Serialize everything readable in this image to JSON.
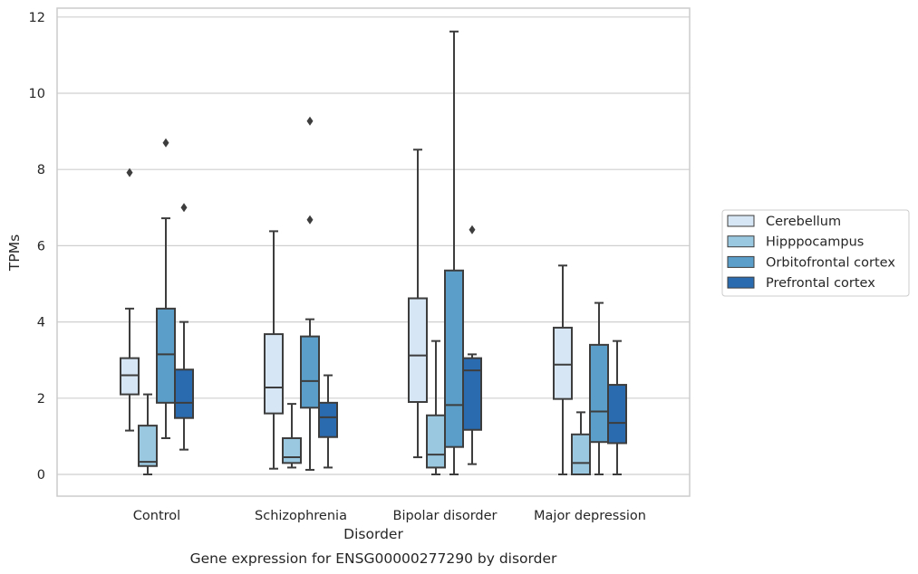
{
  "chart_data": {
    "type": "box",
    "xlabel": "Disorder",
    "ylabel": "TPMs",
    "caption": "Gene expression for ENSG00000277290 by disorder",
    "categories": [
      "Control",
      "Schizophrenia",
      "Bipolar disorder",
      "Major depression"
    ],
    "ylim": [
      -0.55,
      12.2
    ],
    "yticks": [
      0,
      2,
      4,
      6,
      8,
      10,
      12
    ],
    "grid": "horizontal",
    "legend_position": "right",
    "series": [
      {
        "name": "Cerebellum",
        "color": "#d6e6f4",
        "boxes": [
          {
            "whisker_low": 1.15,
            "q1": 2.1,
            "median": 2.6,
            "q3": 3.05,
            "whisker_high": 4.35,
            "outliers": [
              7.92
            ]
          },
          {
            "whisker_low": 0.15,
            "q1": 1.6,
            "median": 2.28,
            "q3": 3.68,
            "whisker_high": 6.38,
            "outliers": []
          },
          {
            "whisker_low": 0.45,
            "q1": 1.9,
            "median": 3.12,
            "q3": 4.62,
            "whisker_high": 8.52,
            "outliers": []
          },
          {
            "whisker_low": 0.0,
            "q1": 1.98,
            "median": 2.88,
            "q3": 3.85,
            "whisker_high": 5.48,
            "outliers": []
          }
        ]
      },
      {
        "name": "Hipppocampus",
        "color": "#9ac8e0",
        "boxes": [
          {
            "whisker_low": 0.0,
            "q1": 0.22,
            "median": 0.33,
            "q3": 1.28,
            "whisker_high": 2.1,
            "outliers": []
          },
          {
            "whisker_low": 0.18,
            "q1": 0.3,
            "median": 0.45,
            "q3": 0.95,
            "whisker_high": 1.85,
            "outliers": []
          },
          {
            "whisker_low": 0.0,
            "q1": 0.18,
            "median": 0.52,
            "q3": 1.55,
            "whisker_high": 3.5,
            "outliers": []
          },
          {
            "whisker_low": 0.0,
            "q1": 0.0,
            "median": 0.3,
            "q3": 1.05,
            "whisker_high": 1.63,
            "outliers": []
          }
        ]
      },
      {
        "name": "Orbitofrontal cortex",
        "color": "#5a9ec9",
        "boxes": [
          {
            "whisker_low": 0.95,
            "q1": 1.88,
            "median": 3.15,
            "q3": 4.35,
            "whisker_high": 6.72,
            "outliers": [
              8.7
            ]
          },
          {
            "whisker_low": 0.12,
            "q1": 1.75,
            "median": 2.45,
            "q3": 3.62,
            "whisker_high": 4.07,
            "outliers": [
              6.68,
              9.27
            ]
          },
          {
            "whisker_low": 0.0,
            "q1": 0.72,
            "median": 1.82,
            "q3": 5.35,
            "whisker_high": 11.62,
            "outliers": []
          },
          {
            "whisker_low": 0.0,
            "q1": 0.85,
            "median": 1.65,
            "q3": 3.4,
            "whisker_high": 4.5,
            "outliers": []
          }
        ]
      },
      {
        "name": "Prefrontal cortex",
        "color": "#2a6bb0",
        "boxes": [
          {
            "whisker_low": 0.65,
            "q1": 1.48,
            "median": 1.88,
            "q3": 2.75,
            "whisker_high": 4.0,
            "outliers": [
              7.0
            ]
          },
          {
            "whisker_low": 0.18,
            "q1": 0.98,
            "median": 1.5,
            "q3": 1.88,
            "whisker_high": 2.6,
            "outliers": []
          },
          {
            "whisker_low": 0.27,
            "q1": 1.17,
            "median": 2.73,
            "q3": 3.05,
            "whisker_high": 3.15,
            "outliers": [
              6.42
            ]
          },
          {
            "whisker_low": 0.0,
            "q1": 0.82,
            "median": 1.35,
            "q3": 2.35,
            "whisker_high": 3.5,
            "outliers": []
          }
        ]
      }
    ]
  },
  "colors": {
    "grid": "#cfcfcf",
    "frame": "#cccccc",
    "box_edge": "#3d3d3d",
    "text": "#262626"
  }
}
